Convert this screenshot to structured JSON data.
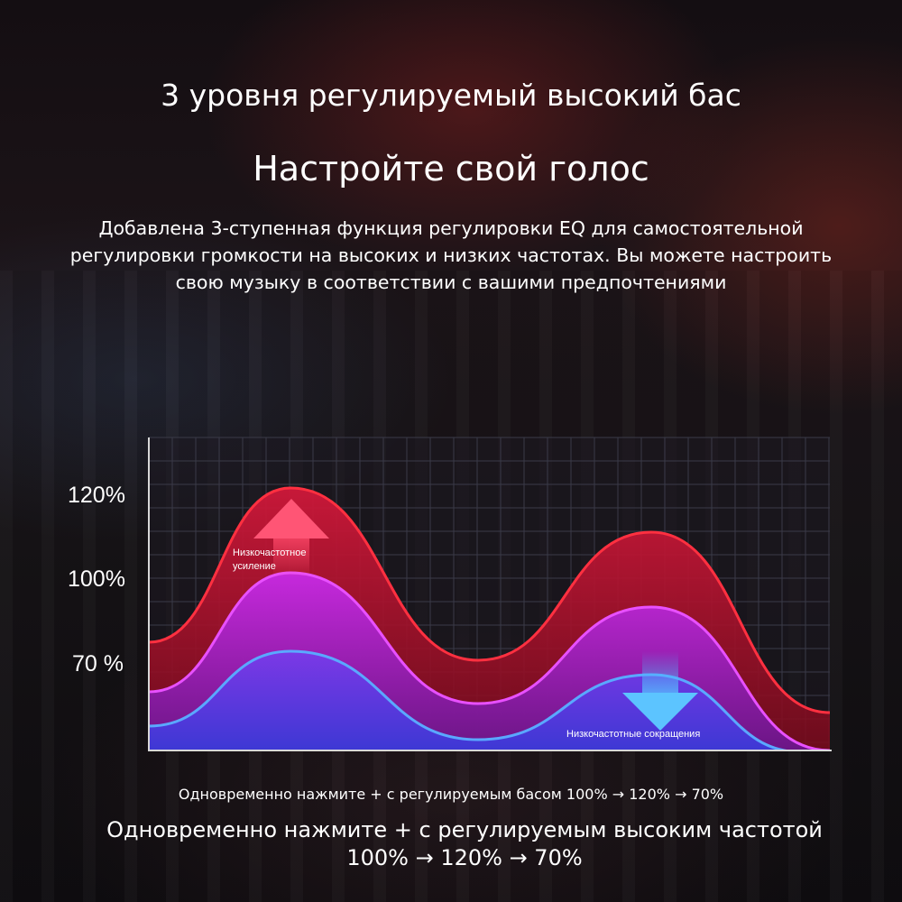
{
  "header": {
    "title": "3 уровня регулируемый высокий бас",
    "subtitle": "Настройте свой голос"
  },
  "description": {
    "lines": [
      "Добавлена 3-ступенная функция регулировки EQ для самостоятельной",
      "регулировки громкости на высоких и низких частотах. Вы можете настроить",
      "свою музыку в соответствии с вашими предпочтениями"
    ]
  },
  "chart_data": {
    "type": "area",
    "y_ticks": [
      "120%",
      "100%",
      "70 %"
    ],
    "y_tick_values": [
      120,
      100,
      70
    ],
    "grid": true,
    "series": [
      {
        "level": 120,
        "color": "#e0213a",
        "peaks": [
          120,
          108
        ]
      },
      {
        "level": 100,
        "color": "#c020e0",
        "peaks": [
          100,
          90
        ]
      },
      {
        "level": 70,
        "color": "#4a8cf0",
        "peaks": [
          70,
          63
        ]
      }
    ],
    "annotations": {
      "boost_line1": "Низкочастотное",
      "boost_line2": "усиление",
      "cut": "Низкочастотные сокращения"
    },
    "colors": {
      "boost_arrow": "#ff4a6a",
      "cut_arrow": "#4ab0ff",
      "grid": "#3a3a48"
    }
  },
  "footer": {
    "line1": "Одновременно нажмите + с регулируемым басом 100% → 120% → 70%",
    "line2a": "Одновременно нажмите + с регулируемым высоким частотой",
    "line2b": "100% → 120% → 70%"
  }
}
